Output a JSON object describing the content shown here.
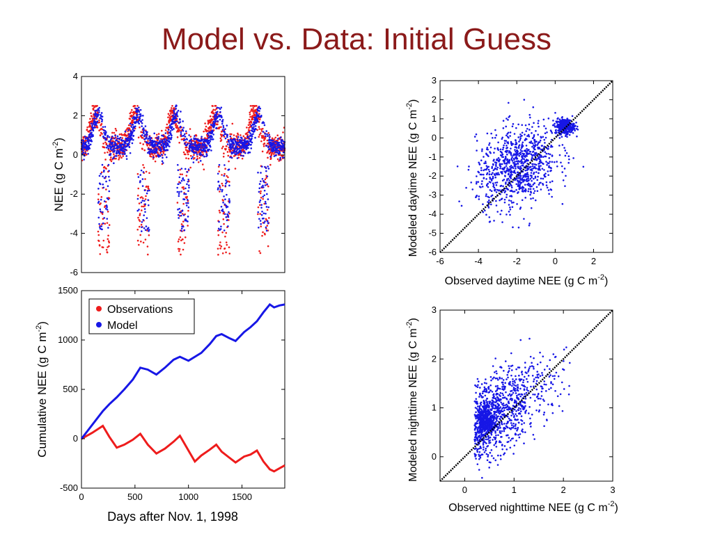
{
  "slide": {
    "title": "Model vs. Data: Initial Guess"
  },
  "colors": {
    "observations": "#ee1c1c",
    "model": "#1717e6",
    "title": "#8b1a1a",
    "one_to_one": "#000000"
  },
  "chart_data": [
    {
      "id": "nee-timeseries",
      "type": "scatter",
      "ylabel": "NEE (g C m-2)",
      "ylabel_main": "NEE (g C m",
      "ylabel_sup": "-2",
      "ylabel_end": ")",
      "xlim": [
        0,
        1900
      ],
      "ylim": [
        -6,
        4
      ],
      "yticks": [
        "-6",
        "-4",
        "-2",
        "0",
        "2",
        "4"
      ],
      "ytick_values": [
        -6,
        -4,
        -2,
        0,
        2,
        4
      ],
      "xticks": [],
      "series": [
        {
          "name": "Observations",
          "color": "#ee1c1c",
          "description_points": "daily NEE, dense",
          "peaks": [
            130,
            500,
            860,
            1240,
            1620
          ],
          "troughs": [
            210,
            580,
            950,
            1330,
            1700
          ],
          "ymin": -5.2,
          "ymax": 2.5
        },
        {
          "name": "Model",
          "color": "#1717e6",
          "peaks": [
            160,
            530,
            890,
            1280,
            1660
          ],
          "ymin": -4.0,
          "ymax": 2.8
        }
      ]
    },
    {
      "id": "cumulative-nee",
      "type": "line",
      "xlabel": "Days after Nov. 1, 1998",
      "ylabel": "Cumulative NEE (g C m-2)",
      "ylabel_main": "Cumulative NEE (g C m",
      "ylabel_sup": "-2",
      "ylabel_end": ")",
      "xlim": [
        0,
        1900
      ],
      "ylim": [
        -500,
        1500
      ],
      "xticks": [
        "0",
        "500",
        "1000",
        "1500"
      ],
      "xtick_values": [
        0,
        500,
        1000,
        1500
      ],
      "yticks": [
        "-500",
        "0",
        "500",
        "1000",
        "1500"
      ],
      "ytick_values": [
        -500,
        0,
        500,
        1000,
        1500
      ],
      "legend": {
        "placement": "top-left",
        "entries": [
          "Observations",
          "Model"
        ]
      },
      "series": [
        {
          "name": "Observations",
          "color": "#ee1c1c",
          "x": [
            0,
            100,
            200,
            260,
            330,
            400,
            480,
            550,
            620,
            700,
            780,
            860,
            920,
            1000,
            1060,
            1120,
            1200,
            1260,
            1310,
            1380,
            1440,
            1520,
            1580,
            1640,
            1700,
            1760,
            1800,
            1850,
            1900
          ],
          "y": [
            0,
            60,
            130,
            20,
            -90,
            -60,
            -10,
            50,
            -60,
            -150,
            -100,
            -30,
            30,
            -120,
            -230,
            -170,
            -110,
            -60,
            -130,
            -190,
            -240,
            -180,
            -160,
            -120,
            -230,
            -310,
            -330,
            -300,
            -270
          ]
        },
        {
          "name": "Model",
          "color": "#1717e6",
          "x": [
            0,
            100,
            200,
            260,
            330,
            400,
            480,
            550,
            620,
            700,
            780,
            860,
            920,
            1000,
            1060,
            1120,
            1200,
            1260,
            1310,
            1380,
            1440,
            1520,
            1580,
            1640,
            1700,
            1760,
            1800,
            1850,
            1900
          ],
          "y": [
            0,
            140,
            280,
            350,
            420,
            500,
            600,
            720,
            700,
            650,
            720,
            800,
            830,
            790,
            830,
            870,
            960,
            1040,
            1060,
            1020,
            990,
            1080,
            1130,
            1190,
            1280,
            1360,
            1330,
            1350,
            1360
          ]
        }
      ]
    },
    {
      "id": "daytime-scatter",
      "type": "scatter",
      "xlabel": "Observed daytime NEE (g C m-2)",
      "xlabel_main": "Observed daytime NEE (g C m",
      "xlabel_sup": "-2",
      "xlabel_end": ")",
      "ylabel": "Modeled daytime NEE (g C m-2)",
      "ylabel_main": "Modeled daytime NEE (g C m",
      "ylabel_sup": "-2",
      "ylabel_end": ")",
      "xlim": [
        -6,
        3
      ],
      "ylim": [
        -6,
        3
      ],
      "xticks": [
        "-6",
        "-4",
        "-2",
        "0",
        "2"
      ],
      "xtick_values": [
        -6,
        -4,
        -2,
        0,
        2
      ],
      "yticks": [
        "-6",
        "-5",
        "-4",
        "-3",
        "-2",
        "-1",
        "0",
        "1",
        "2",
        "3"
      ],
      "ytick_values": [
        -6,
        -5,
        -4,
        -3,
        -2,
        -1,
        0,
        1,
        2,
        3
      ],
      "one_to_one_line": true,
      "series": [
        {
          "name": "",
          "color": "#1717e6",
          "cluster_center": [
            0.5,
            0.6
          ],
          "cloud_center": [
            -2.0,
            -1.5
          ]
        }
      ]
    },
    {
      "id": "nighttime-scatter",
      "type": "scatter",
      "xlabel": "Observed nighttime NEE (g C m-2)",
      "xlabel_main": "Observed nighttime NEE (g C m",
      "xlabel_sup": "-2",
      "xlabel_end": ")",
      "ylabel": "Modeled nighttime NEE (g C m-2)",
      "ylabel_main": "Modeled nighttime NEE (g C m",
      "ylabel_sup": "-2",
      "ylabel_end": ")",
      "xlim": [
        -0.5,
        3
      ],
      "ylim": [
        -0.5,
        3
      ],
      "xticks": [
        "0",
        "1",
        "2",
        "3"
      ],
      "xtick_values": [
        0,
        1,
        2,
        3
      ],
      "yticks": [
        "0",
        "1",
        "2",
        "3"
      ],
      "ytick_values": [
        0,
        1,
        2,
        3
      ],
      "one_to_one_line": true,
      "series": [
        {
          "name": "",
          "color": "#1717e6",
          "cluster_center": [
            0.3,
            0.7
          ],
          "cloud_center": [
            1.0,
            1.3
          ]
        }
      ]
    }
  ]
}
